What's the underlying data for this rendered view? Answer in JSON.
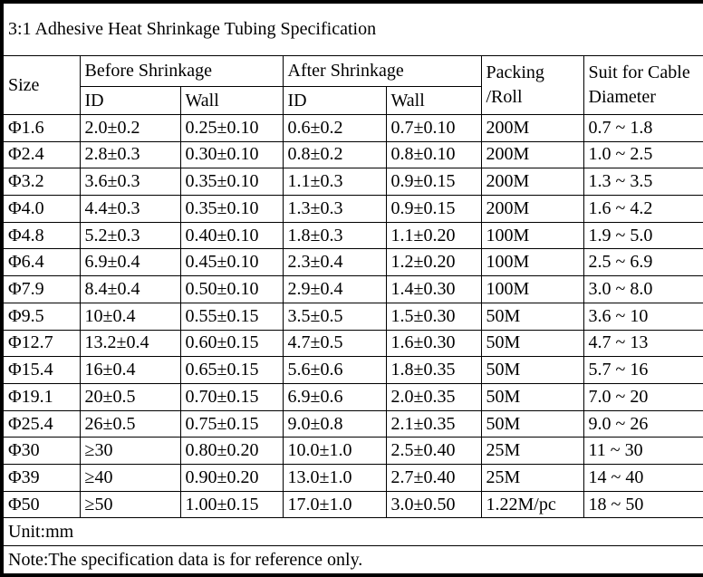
{
  "title": "3:1 Adhesive Heat Shrinkage Tubing Specification",
  "colors": {
    "header_bg": "#dce4f1",
    "border": "#000000",
    "text": "#000000",
    "background": "#ffffff"
  },
  "table": {
    "headers": {
      "size": "Size",
      "before_shrinkage": "Before Shrinkage",
      "after_shrinkage": "After Shrinkage",
      "before_id": "ID",
      "before_wall": "Wall",
      "after_id": "ID",
      "after_wall": "Wall",
      "packing_line1": "Packing",
      "packing_line2": "/Roll",
      "cable_line1": "Suit for Cable",
      "cable_line2": "Diameter"
    },
    "rows": [
      {
        "size": "Φ1.6",
        "before_id": "2.0±0.2",
        "before_wall": "0.25±0.10",
        "after_id": "0.6±0.2",
        "after_wall": "0.7±0.10",
        "packing": "200M",
        "cable": "0.7 ~ 1.8"
      },
      {
        "size": "Φ2.4",
        "before_id": "2.8±0.3",
        "before_wall": "0.30±0.10",
        "after_id": "0.8±0.2",
        "after_wall": "0.8±0.10",
        "packing": "200M",
        "cable": "1.0 ~ 2.5"
      },
      {
        "size": "Φ3.2",
        "before_id": "3.6±0.3",
        "before_wall": "0.35±0.10",
        "after_id": "1.1±0.3",
        "after_wall": "0.9±0.15",
        "packing": "200M",
        "cable": "1.3 ~ 3.5"
      },
      {
        "size": "Φ4.0",
        "before_id": "4.4±0.3",
        "before_wall": "0.35±0.10",
        "after_id": "1.3±0.3",
        "after_wall": "0.9±0.15",
        "packing": "200M",
        "cable": "1.6 ~ 4.2"
      },
      {
        "size": "Φ4.8",
        "before_id": "5.2±0.3",
        "before_wall": "0.40±0.10",
        "after_id": "1.8±0.3",
        "after_wall": "1.1±0.20",
        "packing": "100M",
        "cable": "1.9 ~ 5.0"
      },
      {
        "size": "Φ6.4",
        "before_id": "6.9±0.4",
        "before_wall": "0.45±0.10",
        "after_id": "2.3±0.4",
        "after_wall": "1.2±0.20",
        "packing": "100M",
        "cable": "2.5 ~ 6.9"
      },
      {
        "size": "Φ7.9",
        "before_id": "8.4±0.4",
        "before_wall": "0.50±0.10",
        "after_id": "2.9±0.4",
        "after_wall": "1.4±0.30",
        "packing": "100M",
        "cable": "3.0 ~ 8.0"
      },
      {
        "size": "Φ9.5",
        "before_id": "10±0.4",
        "before_wall": "0.55±0.15",
        "after_id": "3.5±0.5",
        "after_wall": "1.5±0.30",
        "packing": "50M",
        "cable": "3.6 ~ 10"
      },
      {
        "size": "Φ12.7",
        "before_id": "13.2±0.4",
        "before_wall": "0.60±0.15",
        "after_id": "4.7±0.5",
        "after_wall": "1.6±0.30",
        "packing": "50M",
        "cable": "4.7 ~ 13"
      },
      {
        "size": "Φ15.4",
        "before_id": "16±0.4",
        "before_wall": "0.65±0.15",
        "after_id": "5.6±0.6",
        "after_wall": "1.8±0.35",
        "packing": "50M",
        "cable": "5.7 ~ 16"
      },
      {
        "size": "Φ19.1",
        "before_id": "20±0.5",
        "before_wall": "0.70±0.15",
        "after_id": "6.9±0.6",
        "after_wall": "2.0±0.35",
        "packing": "50M",
        "cable": "7.0 ~ 20"
      },
      {
        "size": "Φ25.4",
        "before_id": "26±0.5",
        "before_wall": "0.75±0.15",
        "after_id": "9.0±0.8",
        "after_wall": "2.1±0.35",
        "packing": "50M",
        "cable": "9.0 ~ 26"
      },
      {
        "size": "Φ30",
        "before_id": "≥30",
        "before_wall": "0.80±0.20",
        "after_id": "10.0±1.0",
        "after_wall": "2.5±0.40",
        "packing": "25M",
        "cable": "11 ~ 30"
      },
      {
        "size": "Φ39",
        "before_id": "≥40",
        "before_wall": "0.90±0.20",
        "after_id": "13.0±1.0",
        "after_wall": "2.7±0.40",
        "packing": "25M",
        "cable": "14 ~ 40"
      },
      {
        "size": "Φ50",
        "before_id": "≥50",
        "before_wall": "1.00±0.15",
        "after_id": "17.0±1.0",
        "after_wall": "3.0±0.50",
        "packing": "1.22M/pc",
        "cable": "18 ~ 50"
      }
    ]
  },
  "footer": {
    "unit": "Unit:mm",
    "note": "Note:The specification data is for reference only."
  }
}
